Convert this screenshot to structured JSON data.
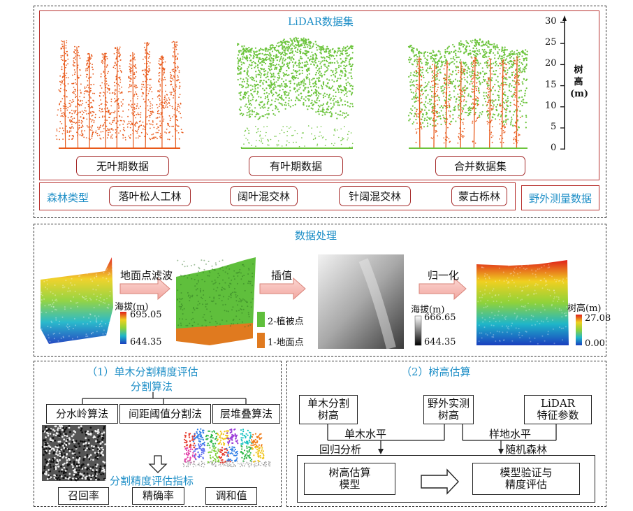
{
  "top": {
    "title": "LiDAR数据集",
    "datasets": [
      {
        "label": "无叶期数据"
      },
      {
        "label": "有叶期数据"
      },
      {
        "label": "合并数据集"
      }
    ],
    "height_axis": {
      "title_chars": [
        "树",
        "高",
        "(m)"
      ],
      "ticks": [
        "30",
        "25",
        "20",
        "15",
        "10",
        "5",
        "0"
      ]
    },
    "forest_types_label": "森林类型",
    "forest_types": [
      "落叶松人工林",
      "阔叶混交林",
      "针阔混交林",
      "蒙古栎林"
    ],
    "field_data": "野外测量数据"
  },
  "processing": {
    "title": "数据处理",
    "arrows": [
      "地面点滤波",
      "插值",
      "归一化"
    ],
    "legend1": {
      "title": "海拔(m)",
      "max": "695.05",
      "min": "644.35"
    },
    "legend2": {
      "high": "2-植被点",
      "low": "1-地面点"
    },
    "legend3": {
      "title": "海拔(m)",
      "max": "666.65",
      "min": "644.35"
    },
    "legend4": {
      "title": "树高(m)",
      "max": "27.08",
      "min": "0.00"
    }
  },
  "seg": {
    "title": "（1）单木分割精度评估",
    "algo_title": "分割算法",
    "algorithms": [
      "分水岭算法",
      "间距阈值分割法",
      "层堆叠算法"
    ],
    "metrics_title": "分割精度评估指标",
    "metrics": [
      "召回率",
      "精确率",
      "调和值"
    ]
  },
  "est": {
    "title": "（2）树高估算",
    "inputs": [
      "单木分割\n树高",
      "野外实测\n树高",
      "LiDAR\n特征参数"
    ],
    "tree_level": "单木水平",
    "plot_level": "样地水平",
    "regression": "回归分析",
    "rf": "随机森林",
    "model": "树高估算\n模型",
    "validation": "模型验证与\n精度评估"
  },
  "colors": {
    "orange": "#e8591a",
    "green": "#6cc43c",
    "red_border": "#b8312f",
    "blue_text": "#1f8fc7"
  }
}
